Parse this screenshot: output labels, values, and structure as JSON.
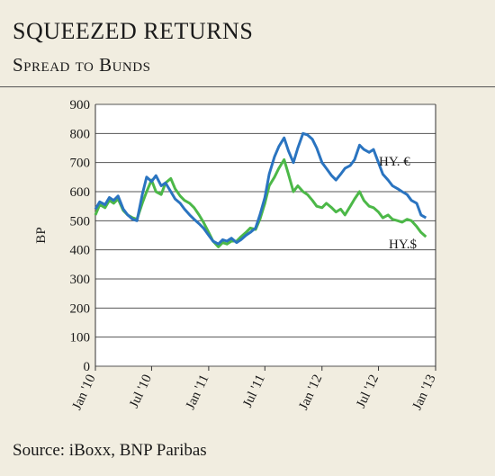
{
  "chart_data": {
    "type": "line",
    "title": "SQUEEZED RETURNS",
    "subtitle": "Spread to Bunds",
    "ylabel": "BP",
    "xlabel": "",
    "ylim": [
      0,
      900
    ],
    "yticks": [
      0,
      100,
      200,
      300,
      400,
      500,
      600,
      700,
      800,
      900
    ],
    "xlim": [
      "2010-01",
      "2013-01"
    ],
    "xticks": [
      {
        "label": "Jan '10",
        "x": "2010-01"
      },
      {
        "label": "Jul '10",
        "x": "2010-07"
      },
      {
        "label": "Jan '11",
        "x": "2011-01"
      },
      {
        "label": "Jul '11",
        "x": "2011-07"
      },
      {
        "label": "Jan '12",
        "x": "2012-01"
      },
      {
        "label": "Jul '12",
        "x": "2012-07"
      },
      {
        "label": "Jan '13",
        "x": "2013-01"
      }
    ],
    "grid": "horizontal",
    "series": [
      {
        "name": "HY. €",
        "color": "#2a74c0",
        "points": [
          [
            "2010-01-01",
            540
          ],
          [
            "2010-01-15",
            565
          ],
          [
            "2010-02-01",
            555
          ],
          [
            "2010-02-15",
            580
          ],
          [
            "2010-03-01",
            570
          ],
          [
            "2010-03-15",
            585
          ],
          [
            "2010-04-01",
            540
          ],
          [
            "2010-04-15",
            520
          ],
          [
            "2010-05-01",
            505
          ],
          [
            "2010-05-15",
            500
          ],
          [
            "2010-06-01",
            590
          ],
          [
            "2010-06-15",
            650
          ],
          [
            "2010-07-01",
            635
          ],
          [
            "2010-07-15",
            655
          ],
          [
            "2010-08-01",
            620
          ],
          [
            "2010-08-15",
            630
          ],
          [
            "2010-09-01",
            600
          ],
          [
            "2010-09-15",
            575
          ],
          [
            "2010-10-01",
            560
          ],
          [
            "2010-10-15",
            540
          ],
          [
            "2010-11-01",
            520
          ],
          [
            "2010-11-15",
            505
          ],
          [
            "2010-12-01",
            490
          ],
          [
            "2010-12-15",
            475
          ],
          [
            "2011-01-01",
            450
          ],
          [
            "2011-01-15",
            430
          ],
          [
            "2011-02-01",
            420
          ],
          [
            "2011-02-15",
            435
          ],
          [
            "2011-03-01",
            430
          ],
          [
            "2011-03-15",
            440
          ],
          [
            "2011-04-01",
            425
          ],
          [
            "2011-04-15",
            435
          ],
          [
            "2011-05-01",
            450
          ],
          [
            "2011-05-15",
            460
          ],
          [
            "2011-06-01",
            475
          ],
          [
            "2011-06-15",
            520
          ],
          [
            "2011-07-01",
            580
          ],
          [
            "2011-07-15",
            660
          ],
          [
            "2011-08-01",
            720
          ],
          [
            "2011-08-15",
            755
          ],
          [
            "2011-09-01",
            785
          ],
          [
            "2011-09-15",
            740
          ],
          [
            "2011-10-01",
            700
          ],
          [
            "2011-10-15",
            750
          ],
          [
            "2011-11-01",
            800
          ],
          [
            "2011-11-15",
            795
          ],
          [
            "2011-12-01",
            780
          ],
          [
            "2011-12-15",
            750
          ],
          [
            "2012-01-01",
            700
          ],
          [
            "2012-01-15",
            680
          ],
          [
            "2012-02-01",
            655
          ],
          [
            "2012-02-15",
            640
          ],
          [
            "2012-03-01",
            660
          ],
          [
            "2012-03-15",
            680
          ],
          [
            "2012-04-01",
            690
          ],
          [
            "2012-04-15",
            710
          ],
          [
            "2012-05-01",
            760
          ],
          [
            "2012-05-15",
            745
          ],
          [
            "2012-06-01",
            735
          ],
          [
            "2012-06-15",
            745
          ],
          [
            "2012-07-01",
            700
          ],
          [
            "2012-07-15",
            660
          ],
          [
            "2012-08-01",
            640
          ],
          [
            "2012-08-15",
            620
          ],
          [
            "2012-09-01",
            610
          ],
          [
            "2012-09-15",
            600
          ],
          [
            "2012-10-01",
            590
          ],
          [
            "2012-10-15",
            570
          ],
          [
            "2012-11-01",
            560
          ],
          [
            "2012-11-15",
            520
          ],
          [
            "2012-12-01",
            510
          ]
        ]
      },
      {
        "name": "HY.$",
        "color": "#4cb848",
        "points": [
          [
            "2010-01-01",
            520
          ],
          [
            "2010-01-15",
            555
          ],
          [
            "2010-02-01",
            545
          ],
          [
            "2010-02-15",
            570
          ],
          [
            "2010-03-01",
            560
          ],
          [
            "2010-03-15",
            575
          ],
          [
            "2010-04-01",
            535
          ],
          [
            "2010-04-15",
            520
          ],
          [
            "2010-05-01",
            510
          ],
          [
            "2010-05-15",
            505
          ],
          [
            "2010-06-01",
            560
          ],
          [
            "2010-06-15",
            600
          ],
          [
            "2010-07-01",
            640
          ],
          [
            "2010-07-15",
            600
          ],
          [
            "2010-08-01",
            590
          ],
          [
            "2010-08-15",
            630
          ],
          [
            "2010-09-01",
            645
          ],
          [
            "2010-09-15",
            610
          ],
          [
            "2010-10-01",
            585
          ],
          [
            "2010-10-15",
            570
          ],
          [
            "2010-11-01",
            560
          ],
          [
            "2010-11-15",
            545
          ],
          [
            "2010-12-01",
            520
          ],
          [
            "2010-12-15",
            495
          ],
          [
            "2011-01-01",
            460
          ],
          [
            "2011-01-15",
            430
          ],
          [
            "2011-02-01",
            410
          ],
          [
            "2011-02-15",
            425
          ],
          [
            "2011-03-01",
            420
          ],
          [
            "2011-03-15",
            430
          ],
          [
            "2011-04-01",
            430
          ],
          [
            "2011-04-15",
            445
          ],
          [
            "2011-05-01",
            460
          ],
          [
            "2011-05-15",
            475
          ],
          [
            "2011-06-01",
            470
          ],
          [
            "2011-06-15",
            505
          ],
          [
            "2011-07-01",
            560
          ],
          [
            "2011-07-15",
            620
          ],
          [
            "2011-08-01",
            650
          ],
          [
            "2011-08-15",
            680
          ],
          [
            "2011-09-01",
            710
          ],
          [
            "2011-09-15",
            660
          ],
          [
            "2011-10-01",
            600
          ],
          [
            "2011-10-15",
            620
          ],
          [
            "2011-11-01",
            600
          ],
          [
            "2011-11-15",
            590
          ],
          [
            "2011-12-01",
            570
          ],
          [
            "2011-12-15",
            550
          ],
          [
            "2012-01-01",
            545
          ],
          [
            "2012-01-15",
            560
          ],
          [
            "2012-02-01",
            545
          ],
          [
            "2012-02-15",
            530
          ],
          [
            "2012-03-01",
            540
          ],
          [
            "2012-03-15",
            520
          ],
          [
            "2012-04-01",
            550
          ],
          [
            "2012-04-15",
            575
          ],
          [
            "2012-05-01",
            600
          ],
          [
            "2012-05-15",
            570
          ],
          [
            "2012-06-01",
            550
          ],
          [
            "2012-06-15",
            545
          ],
          [
            "2012-07-01",
            530
          ],
          [
            "2012-07-15",
            510
          ],
          [
            "2012-08-01",
            520
          ],
          [
            "2012-08-15",
            505
          ],
          [
            "2012-09-01",
            500
          ],
          [
            "2012-09-15",
            495
          ],
          [
            "2012-10-01",
            505
          ],
          [
            "2012-10-15",
            500
          ],
          [
            "2012-11-01",
            480
          ],
          [
            "2012-11-15",
            460
          ],
          [
            "2012-12-01",
            445
          ]
        ]
      }
    ]
  },
  "source": "Source: iBoxx, BNP Paribas"
}
